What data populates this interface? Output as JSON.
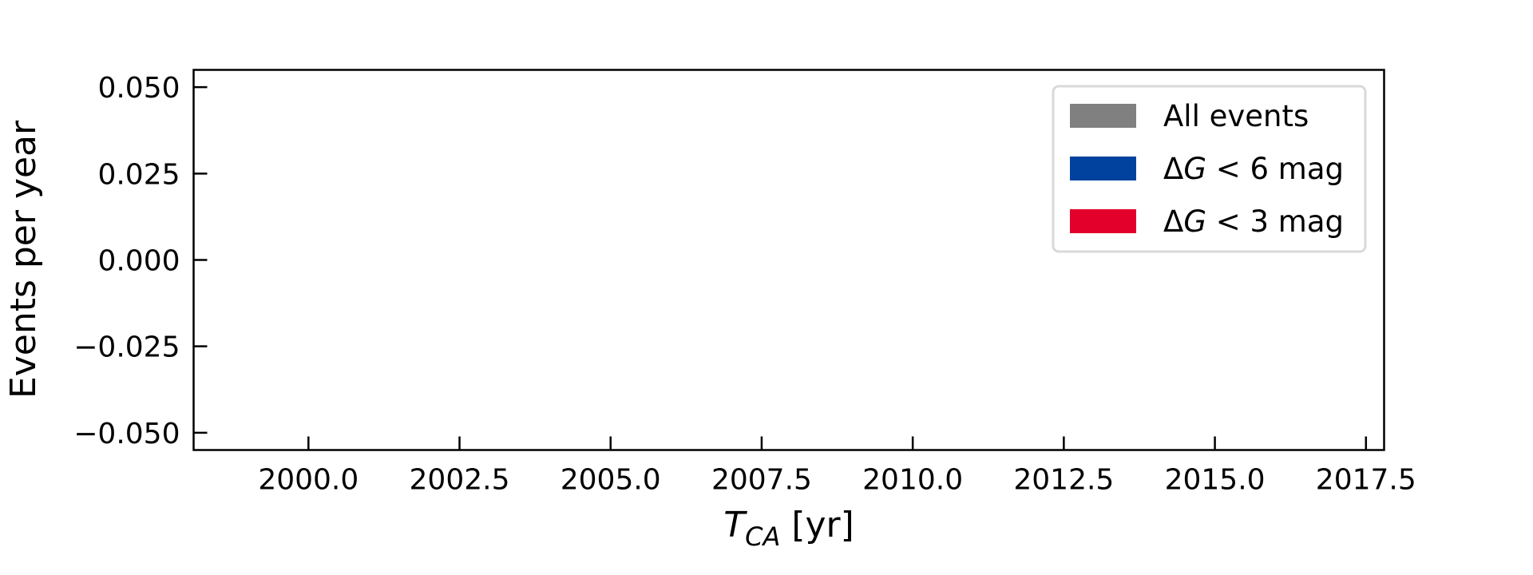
{
  "chart_data": {
    "type": "bar",
    "title": "",
    "xlabel": {
      "italic": "T",
      "subscript": "CA",
      "suffix": " [yr]"
    },
    "ylabel": "Events per year",
    "xlim": [
      1998.1,
      2017.8
    ],
    "ylim": [
      -0.055,
      0.055
    ],
    "xticks": [
      2000.0,
      2002.5,
      2005.0,
      2007.5,
      2010.0,
      2012.5,
      2015.0,
      2017.5
    ],
    "xtick_labels": [
      "2000.0",
      "2002.5",
      "2005.0",
      "2007.5",
      "2010.0",
      "2012.5",
      "2015.0",
      "2017.5"
    ],
    "yticks": [
      0.05,
      0.025,
      0.0,
      -0.025,
      -0.05
    ],
    "ytick_labels": [
      "0.050",
      "0.025",
      "0.000",
      "−0.025",
      "−0.050"
    ],
    "tick_direction": "in",
    "grid": false,
    "legend_position": "top-right",
    "series": [
      {
        "name": "All events",
        "color": "#808080",
        "legend_parts": [
          "All events"
        ],
        "values": []
      },
      {
        "name": "ΔG < 6 mag",
        "color": "#00429d",
        "legend_parts": [
          "Δ",
          "G",
          " < 6 mag"
        ],
        "values": []
      },
      {
        "name": "ΔG < 3 mag",
        "color": "#e3002a",
        "legend_parts": [
          "Δ",
          "G",
          " < 3 mag"
        ],
        "values": []
      }
    ]
  }
}
